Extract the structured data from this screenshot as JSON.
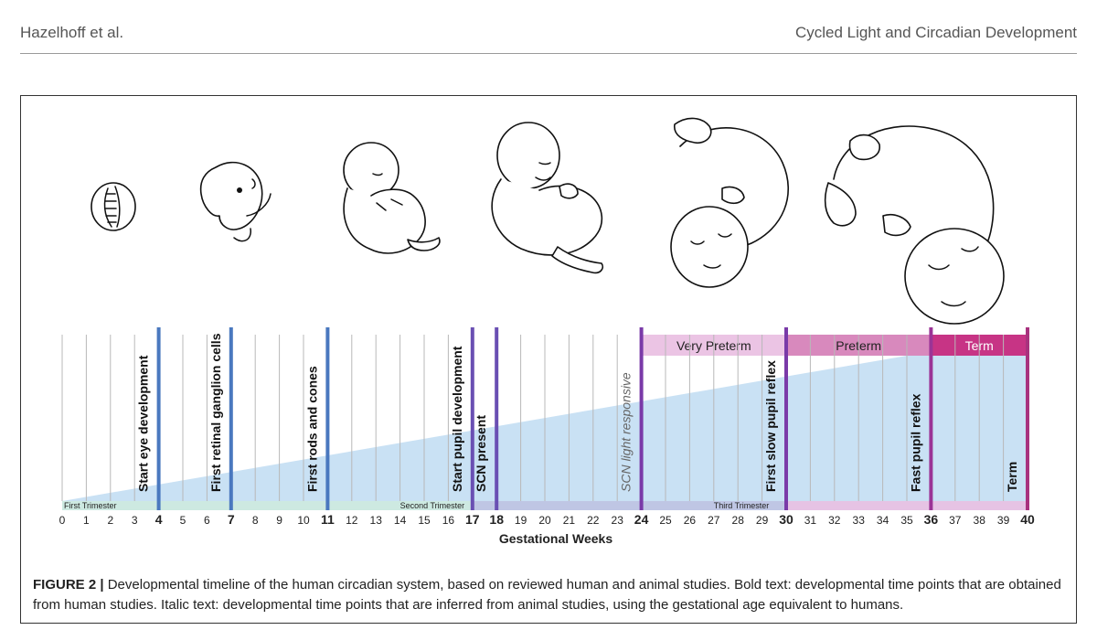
{
  "header": {
    "left": "Hazelhoff et al.",
    "right": "Cycled Light and Circadian Development"
  },
  "figure": {
    "axis_title": "Gestational Weeks",
    "week_labels": [
      "0",
      "1",
      "2",
      "3",
      "4",
      "5",
      "6",
      "7",
      "8",
      "9",
      "10",
      "11",
      "12",
      "13",
      "14",
      "15",
      "16",
      "17",
      "18",
      "19",
      "20",
      "21",
      "22",
      "23",
      "24",
      "25",
      "26",
      "27",
      "28",
      "29",
      "30",
      "31",
      "32",
      "33",
      "34",
      "35",
      "36",
      "37",
      "38",
      "39",
      "40"
    ],
    "bold_weeks": [
      4,
      7,
      11,
      17,
      18,
      24,
      30,
      36,
      40
    ],
    "trimesters": [
      {
        "label": "First Trimester",
        "start": 0,
        "end": 17,
        "color": "#cde9e1"
      },
      {
        "label": "Second Trimester",
        "start": 17,
        "end": 30,
        "color": "#bfc6e4"
      },
      {
        "label": "Third Trimester",
        "start": 30,
        "end": 40,
        "color": "#e6c3e4"
      }
    ],
    "maturity_bands": [
      {
        "label": "Very Preterm",
        "start": 24,
        "end": 30,
        "color": "#ebc4e4"
      },
      {
        "label": "Preterm",
        "start": 30,
        "end": 36,
        "color": "#d889bd"
      },
      {
        "label": "Term",
        "start": 36,
        "end": 40,
        "color": "#c73485"
      }
    ],
    "light_wedge": {
      "start": 0,
      "end": 40,
      "max_fraction": 1.0
    },
    "milestones": [
      {
        "week": 4,
        "label": "Start eye development",
        "style": "bold",
        "color": "#4a78bf"
      },
      {
        "week": 7,
        "label": "First retinal ganglion cells",
        "style": "bold",
        "color": "#4a78bf"
      },
      {
        "week": 11,
        "label": "First rods and cones",
        "style": "bold",
        "color": "#4a78bf"
      },
      {
        "week": 17,
        "label": "Start pupil development",
        "style": "bold",
        "color": "#6a4fb3"
      },
      {
        "week": 18,
        "label": "SCN present",
        "style": "bold",
        "color": "#6a4fb3"
      },
      {
        "week": 24,
        "label": "SCN light responsive",
        "style": "italic",
        "color": "#7a3aa8"
      },
      {
        "week": 30,
        "label": "First slow pupil reflex",
        "style": "bold",
        "color": "#7a3aa8"
      },
      {
        "week": 36,
        "label": "Fast pupil reflex",
        "style": "bold",
        "color": "#9b3496"
      },
      {
        "week": 40,
        "label": "Term",
        "style": "bold",
        "color": "#a8327e"
      }
    ]
  },
  "caption": {
    "label": "FIGURE 2 |",
    "text": " Developmental timeline of the human circadian system, based on reviewed human and animal studies. Bold text: developmental time points that are obtained from human studies. Italic text: developmental time points that are inferred from animal studies, using the gestational age equivalent to humans."
  }
}
